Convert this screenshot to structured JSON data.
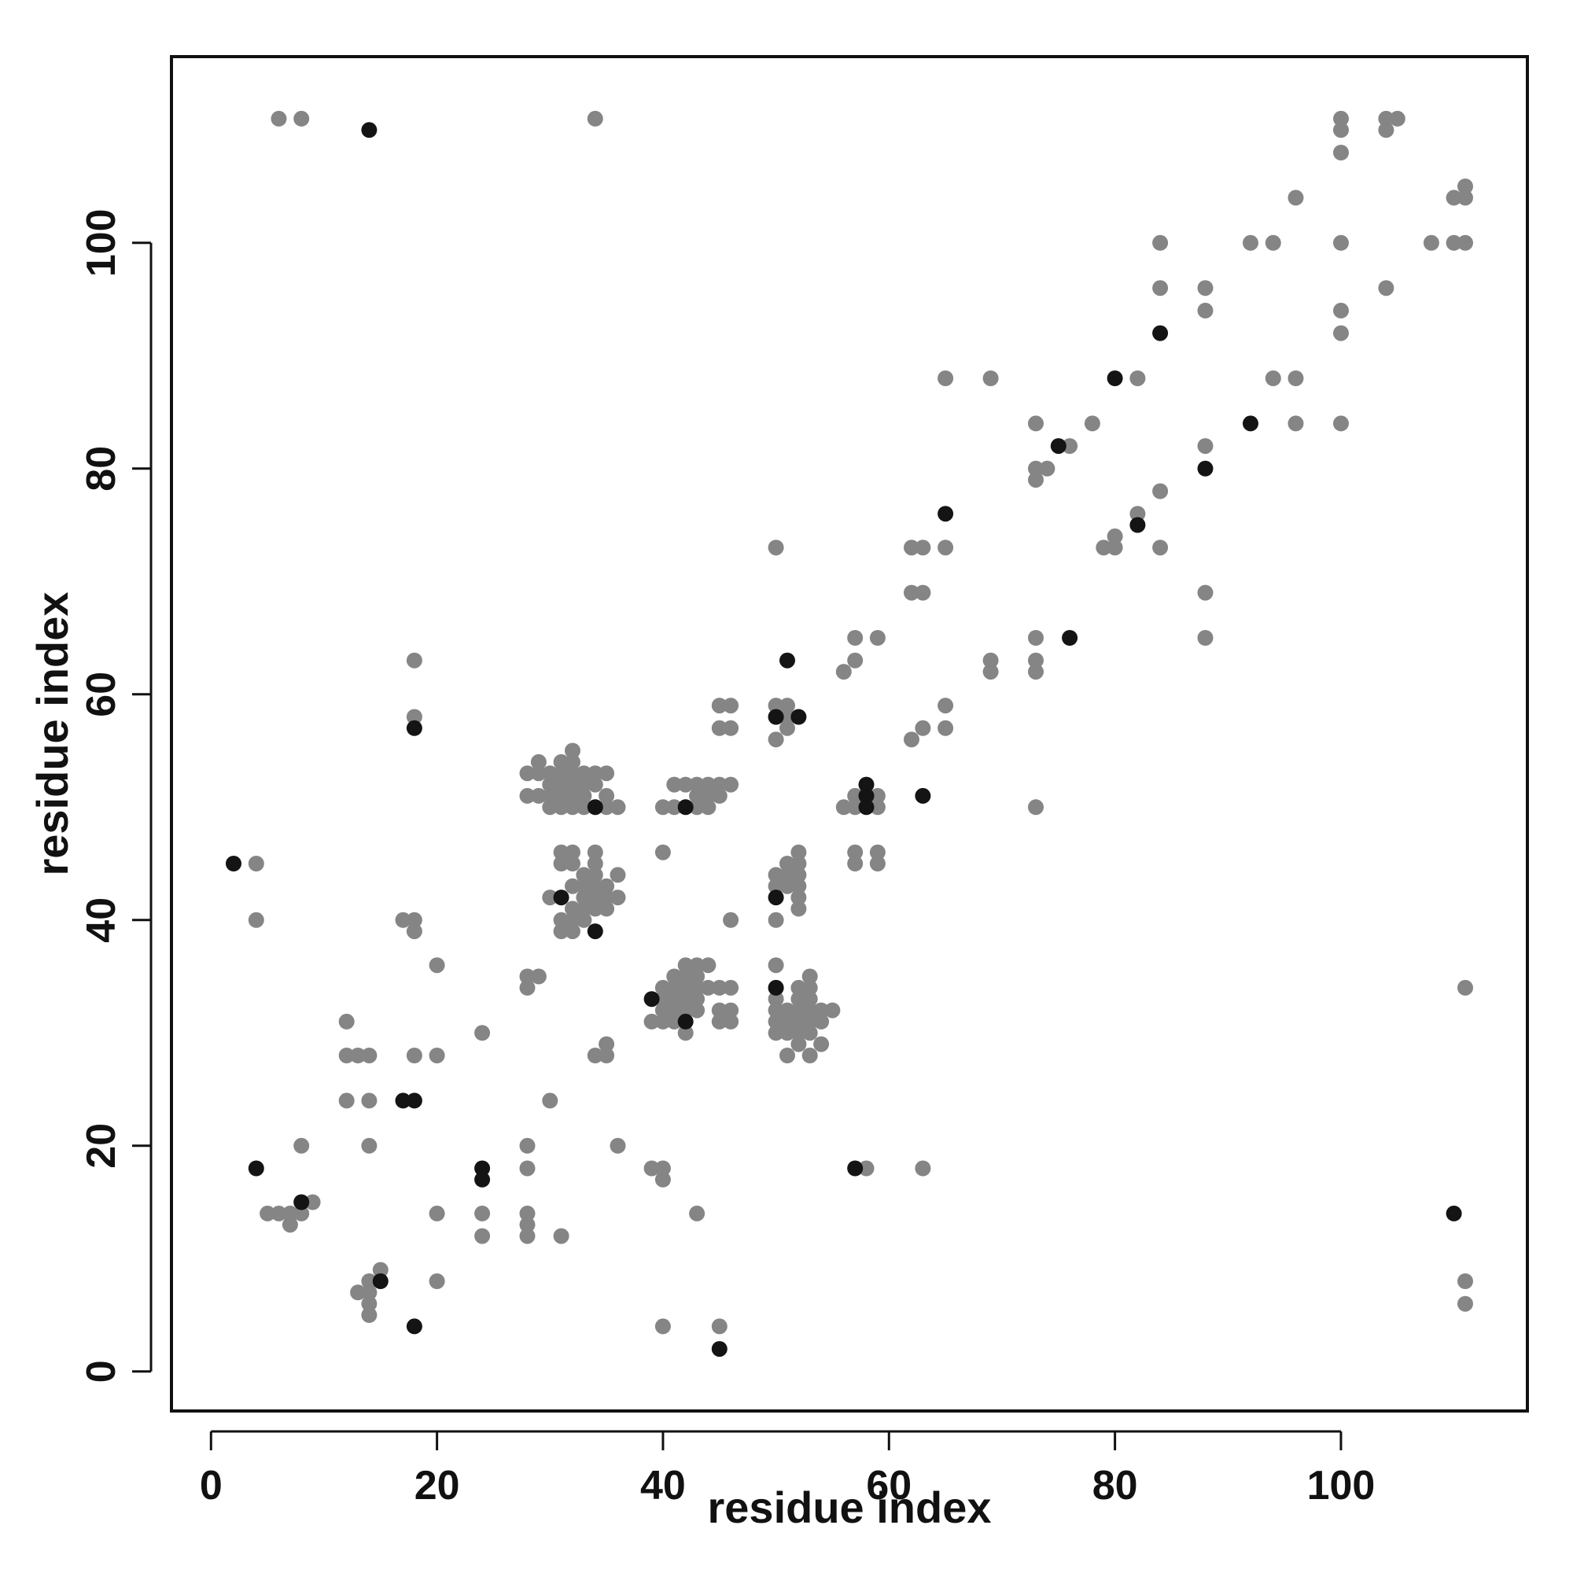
{
  "chart_data": {
    "type": "scatter",
    "title": "",
    "xlabel": "residue index",
    "ylabel": "residue index",
    "xlim": [
      -3.5,
      116.5
    ],
    "ylim": [
      -3.5,
      116.5
    ],
    "x_ticks": [
      0,
      20,
      40,
      60,
      80,
      100
    ],
    "y_ticks": [
      0,
      20,
      40,
      60,
      80,
      100
    ],
    "grid": false,
    "legend": "none",
    "colors": {
      "gray": "#858585",
      "black": "#141414",
      "axis": "#111111"
    },
    "series": [
      {
        "color": "gray",
        "points": [
          [
            6,
            111
          ],
          [
            8,
            111
          ],
          [
            34,
            111
          ],
          [
            100,
            111
          ],
          [
            100,
            110
          ],
          [
            104,
            111
          ],
          [
            105,
            111
          ],
          [
            104,
            110
          ],
          [
            100,
            108
          ],
          [
            96,
            104
          ],
          [
            110,
            104
          ],
          [
            111,
            104
          ],
          [
            111,
            105
          ],
          [
            84,
            100
          ],
          [
            92,
            100
          ],
          [
            94,
            100
          ],
          [
            100,
            100
          ],
          [
            108,
            100
          ],
          [
            110,
            100
          ],
          [
            111,
            100
          ],
          [
            84,
            96
          ],
          [
            88,
            96
          ],
          [
            104,
            96
          ],
          [
            88,
            94
          ],
          [
            100,
            94
          ],
          [
            100,
            92
          ],
          [
            65,
            88
          ],
          [
            69,
            88
          ],
          [
            82,
            88
          ],
          [
            94,
            88
          ],
          [
            96,
            88
          ],
          [
            73,
            84
          ],
          [
            78,
            84
          ],
          [
            96,
            84
          ],
          [
            100,
            84
          ],
          [
            76,
            82
          ],
          [
            88,
            82
          ],
          [
            73,
            80
          ],
          [
            74,
            80
          ],
          [
            73,
            79
          ],
          [
            84,
            78
          ],
          [
            82,
            76
          ],
          [
            80,
            74
          ],
          [
            50,
            73
          ],
          [
            62,
            73
          ],
          [
            63,
            73
          ],
          [
            65,
            73
          ],
          [
            79,
            73
          ],
          [
            80,
            73
          ],
          [
            84,
            73
          ],
          [
            62,
            69
          ],
          [
            63,
            69
          ],
          [
            88,
            69
          ],
          [
            57,
            65
          ],
          [
            59,
            65
          ],
          [
            73,
            65
          ],
          [
            88,
            65
          ],
          [
            18,
            63
          ],
          [
            57,
            63
          ],
          [
            69,
            63
          ],
          [
            73,
            63
          ],
          [
            56,
            62
          ],
          [
            69,
            62
          ],
          [
            73,
            62
          ],
          [
            45,
            59
          ],
          [
            46,
            59
          ],
          [
            50,
            59
          ],
          [
            51,
            59
          ],
          [
            65,
            59
          ],
          [
            18,
            58
          ],
          [
            50,
            58
          ],
          [
            51,
            58
          ],
          [
            45,
            57
          ],
          [
            46,
            57
          ],
          [
            51,
            57
          ],
          [
            63,
            57
          ],
          [
            65,
            57
          ],
          [
            50,
            56
          ],
          [
            62,
            56
          ],
          [
            32,
            55
          ],
          [
            29,
            54
          ],
          [
            31,
            54
          ],
          [
            32,
            54
          ],
          [
            28,
            53
          ],
          [
            29,
            53
          ],
          [
            30,
            53
          ],
          [
            31,
            53
          ],
          [
            32,
            53
          ],
          [
            33,
            53
          ],
          [
            34,
            53
          ],
          [
            35,
            53
          ],
          [
            30,
            52
          ],
          [
            31,
            52
          ],
          [
            32,
            52
          ],
          [
            33,
            52
          ],
          [
            34,
            52
          ],
          [
            41,
            52
          ],
          [
            42,
            52
          ],
          [
            43,
            52
          ],
          [
            44,
            52
          ],
          [
            45,
            52
          ],
          [
            46,
            52
          ],
          [
            28,
            51
          ],
          [
            29,
            51
          ],
          [
            30,
            51
          ],
          [
            31,
            51
          ],
          [
            32,
            51
          ],
          [
            33,
            51
          ],
          [
            35,
            51
          ],
          [
            43,
            51
          ],
          [
            44,
            51
          ],
          [
            45,
            51
          ],
          [
            57,
            51
          ],
          [
            59,
            51
          ],
          [
            30,
            50
          ],
          [
            31,
            50
          ],
          [
            32,
            50
          ],
          [
            33,
            50
          ],
          [
            35,
            50
          ],
          [
            36,
            50
          ],
          [
            40,
            50
          ],
          [
            41,
            50
          ],
          [
            43,
            50
          ],
          [
            44,
            50
          ],
          [
            56,
            50
          ],
          [
            57,
            50
          ],
          [
            59,
            50
          ],
          [
            73,
            50
          ],
          [
            31,
            46
          ],
          [
            32,
            46
          ],
          [
            34,
            46
          ],
          [
            40,
            46
          ],
          [
            52,
            46
          ],
          [
            57,
            46
          ],
          [
            59,
            46
          ],
          [
            31,
            45
          ],
          [
            32,
            45
          ],
          [
            34,
            45
          ],
          [
            51,
            45
          ],
          [
            52,
            45
          ],
          [
            57,
            45
          ],
          [
            59,
            45
          ],
          [
            4,
            45
          ],
          [
            33,
            44
          ],
          [
            34,
            44
          ],
          [
            36,
            44
          ],
          [
            50,
            44
          ],
          [
            51,
            44
          ],
          [
            52,
            44
          ],
          [
            32,
            43
          ],
          [
            33,
            43
          ],
          [
            34,
            43
          ],
          [
            35,
            43
          ],
          [
            50,
            43
          ],
          [
            51,
            43
          ],
          [
            52,
            43
          ],
          [
            30,
            42
          ],
          [
            33,
            42
          ],
          [
            34,
            42
          ],
          [
            35,
            42
          ],
          [
            36,
            42
          ],
          [
            52,
            42
          ],
          [
            32,
            41
          ],
          [
            33,
            41
          ],
          [
            34,
            41
          ],
          [
            35,
            41
          ],
          [
            52,
            41
          ],
          [
            31,
            40
          ],
          [
            32,
            40
          ],
          [
            33,
            40
          ],
          [
            4,
            40
          ],
          [
            17,
            40
          ],
          [
            18,
            40
          ],
          [
            46,
            40
          ],
          [
            50,
            40
          ],
          [
            31,
            39
          ],
          [
            32,
            39
          ],
          [
            18,
            39
          ],
          [
            20,
            36
          ],
          [
            43,
            36
          ],
          [
            42,
            36
          ],
          [
            44,
            36
          ],
          [
            50,
            36
          ],
          [
            28,
            35
          ],
          [
            29,
            35
          ],
          [
            41,
            35
          ],
          [
            42,
            35
          ],
          [
            43,
            35
          ],
          [
            53,
            35
          ],
          [
            40,
            34
          ],
          [
            41,
            34
          ],
          [
            42,
            34
          ],
          [
            43,
            34
          ],
          [
            44,
            34
          ],
          [
            45,
            34
          ],
          [
            46,
            34
          ],
          [
            28,
            34
          ],
          [
            50,
            34
          ],
          [
            52,
            34
          ],
          [
            53,
            34
          ],
          [
            111,
            34
          ],
          [
            40,
            33
          ],
          [
            41,
            33
          ],
          [
            42,
            33
          ],
          [
            43,
            33
          ],
          [
            50,
            33
          ],
          [
            52,
            33
          ],
          [
            53,
            33
          ],
          [
            40,
            32
          ],
          [
            41,
            32
          ],
          [
            42,
            32
          ],
          [
            43,
            32
          ],
          [
            45,
            32
          ],
          [
            46,
            32
          ],
          [
            50,
            32
          ],
          [
            51,
            32
          ],
          [
            52,
            32
          ],
          [
            53,
            32
          ],
          [
            54,
            32
          ],
          [
            55,
            32
          ],
          [
            39,
            31
          ],
          [
            40,
            31
          ],
          [
            41,
            31
          ],
          [
            45,
            31
          ],
          [
            46,
            31
          ],
          [
            50,
            31
          ],
          [
            51,
            31
          ],
          [
            52,
            31
          ],
          [
            53,
            31
          ],
          [
            54,
            31
          ],
          [
            12,
            31
          ],
          [
            42,
            30
          ],
          [
            24,
            30
          ],
          [
            50,
            30
          ],
          [
            51,
            30
          ],
          [
            52,
            30
          ],
          [
            53,
            30
          ],
          [
            35,
            29
          ],
          [
            52,
            29
          ],
          [
            54,
            29
          ],
          [
            12,
            28
          ],
          [
            13,
            28
          ],
          [
            14,
            28
          ],
          [
            18,
            28
          ],
          [
            20,
            28
          ],
          [
            34,
            28
          ],
          [
            35,
            28
          ],
          [
            51,
            28
          ],
          [
            53,
            28
          ],
          [
            12,
            24
          ],
          [
            14,
            24
          ],
          [
            30,
            24
          ],
          [
            8,
            20
          ],
          [
            14,
            20
          ],
          [
            28,
            20
          ],
          [
            36,
            20
          ],
          [
            28,
            18
          ],
          [
            39,
            18
          ],
          [
            40,
            18
          ],
          [
            58,
            18
          ],
          [
            63,
            18
          ],
          [
            40,
            17
          ],
          [
            9,
            15
          ],
          [
            6,
            14
          ],
          [
            7,
            14
          ],
          [
            8,
            14
          ],
          [
            5,
            14
          ],
          [
            20,
            14
          ],
          [
            24,
            14
          ],
          [
            28,
            14
          ],
          [
            43,
            14
          ],
          [
            7,
            13
          ],
          [
            28,
            13
          ],
          [
            24,
            12
          ],
          [
            28,
            12
          ],
          [
            31,
            12
          ],
          [
            15,
            9
          ],
          [
            14,
            8
          ],
          [
            20,
            8
          ],
          [
            111,
            8
          ],
          [
            13,
            7
          ],
          [
            14,
            7
          ],
          [
            14,
            6
          ],
          [
            111,
            6
          ],
          [
            14,
            5
          ],
          [
            40,
            4
          ],
          [
            45,
            4
          ]
        ]
      },
      {
        "color": "black",
        "points": [
          [
            14,
            110
          ],
          [
            84,
            92
          ],
          [
            80,
            88
          ],
          [
            92,
            84
          ],
          [
            75,
            82
          ],
          [
            88,
            80
          ],
          [
            65,
            76
          ],
          [
            82,
            75
          ],
          [
            76,
            65
          ],
          [
            51,
            63
          ],
          [
            50,
            58
          ],
          [
            52,
            58
          ],
          [
            18,
            57
          ],
          [
            58,
            52
          ],
          [
            58,
            51
          ],
          [
            63,
            51
          ],
          [
            34,
            50
          ],
          [
            42,
            50
          ],
          [
            58,
            50
          ],
          [
            2,
            45
          ],
          [
            31,
            42
          ],
          [
            50,
            42
          ],
          [
            34,
            39
          ],
          [
            50,
            34
          ],
          [
            42,
            31
          ],
          [
            39,
            33
          ],
          [
            17,
            24
          ],
          [
            18,
            24
          ],
          [
            4,
            18
          ],
          [
            24,
            18
          ],
          [
            57,
            18
          ],
          [
            24,
            17
          ],
          [
            8,
            15
          ],
          [
            110,
            14
          ],
          [
            15,
            8
          ],
          [
            18,
            4
          ],
          [
            45,
            2
          ]
        ]
      }
    ]
  }
}
